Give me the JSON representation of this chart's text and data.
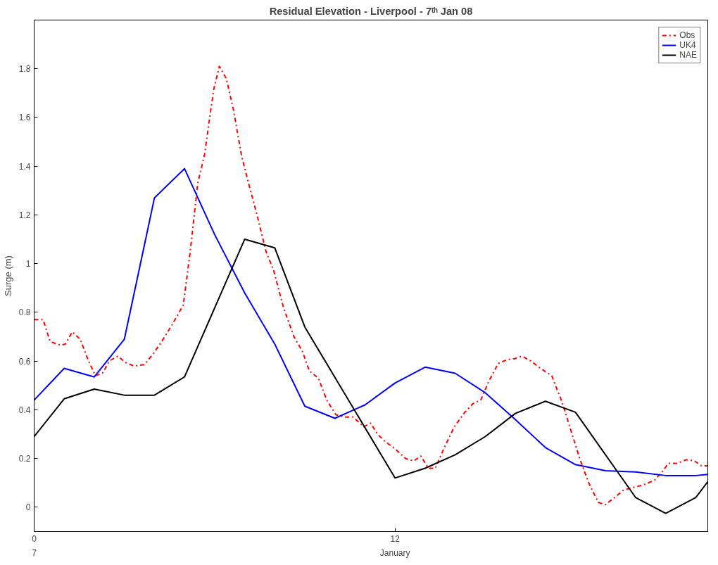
{
  "chart_data": {
    "type": "line",
    "title": "Residual Elevation - Liverpool - 7ᵗʰ Jan 08",
    "ylabel": "Surge (m)",
    "xlim": [
      0,
      22.4
    ],
    "xticks": [
      0,
      12
    ],
    "annotations": [
      "7",
      "January"
    ],
    "ylim": [
      -0.1,
      2.0
    ],
    "yticks": [
      0,
      0.2,
      0.4,
      0.6,
      0.8,
      1,
      1.2,
      1.4,
      1.6,
      1.8
    ],
    "grid": false,
    "legend": "top right",
    "marker": "none",
    "series": [
      {
        "name": "Obs",
        "color": "#ff0000",
        "line_style": "dashed",
        "x": [
          0,
          0.3,
          0.53,
          0.88,
          1.04,
          1.27,
          1.53,
          1.81,
          2.04,
          2.27,
          2.5,
          2.78,
          3.03,
          3.31,
          3.66,
          3.96,
          4.24,
          4.59,
          4.96,
          5.19,
          5.44,
          5.67,
          5.86,
          5.98,
          6.16,
          6.39,
          6.63,
          6.9,
          7.13,
          7.41,
          7.71,
          7.97,
          8.29,
          8.64,
          8.92,
          9.15,
          9.45,
          9.73,
          10.03,
          10.33,
          10.61,
          10.96,
          11.19,
          11.42,
          11.67,
          12.0,
          12.35,
          12.62,
          12.86,
          13.11,
          13.34,
          13.62,
          13.97,
          14.32,
          14.59,
          14.85,
          15.13,
          15.43,
          15.71,
          15.98,
          16.22,
          16.52,
          16.84,
          17.21,
          17.56,
          17.86,
          18.14,
          18.44,
          18.76,
          18.99,
          19.3,
          19.6,
          19.87,
          20.22,
          20.62,
          20.92,
          21.08,
          21.38,
          21.68,
          21.96,
          22.19,
          22.4
        ],
        "values": [
          0.77,
          0.77,
          0.68,
          0.665,
          0.67,
          0.72,
          0.69,
          0.6,
          0.54,
          0.55,
          0.6,
          0.62,
          0.595,
          0.58,
          0.585,
          0.63,
          0.68,
          0.75,
          0.83,
          1.05,
          1.33,
          1.45,
          1.62,
          1.72,
          1.81,
          1.76,
          1.63,
          1.44,
          1.33,
          1.2,
          1.05,
          0.97,
          0.82,
          0.7,
          0.64,
          0.56,
          0.53,
          0.44,
          0.38,
          0.37,
          0.37,
          0.33,
          0.345,
          0.3,
          0.27,
          0.24,
          0.2,
          0.19,
          0.21,
          0.16,
          0.16,
          0.24,
          0.33,
          0.39,
          0.425,
          0.44,
          0.52,
          0.59,
          0.605,
          0.61,
          0.62,
          0.6,
          0.57,
          0.54,
          0.43,
          0.31,
          0.2,
          0.1,
          0.02,
          0.01,
          0.04,
          0.07,
          0.08,
          0.09,
          0.11,
          0.15,
          0.18,
          0.18,
          0.195,
          0.19,
          0.17,
          0.17
        ]
      },
      {
        "name": "UK4",
        "color": "#0000ff",
        "line_style": "solid",
        "x": [
          0,
          1,
          2,
          3,
          4,
          5,
          6,
          7,
          8,
          9,
          10,
          11,
          12,
          13,
          14,
          15,
          16,
          17,
          18,
          19,
          20,
          21,
          22,
          22.4
        ],
        "values": [
          0.44,
          0.57,
          0.535,
          0.69,
          1.27,
          1.39,
          1.12,
          0.88,
          0.67,
          0.415,
          0.365,
          0.42,
          0.51,
          0.575,
          0.55,
          0.47,
          0.36,
          0.245,
          0.175,
          0.15,
          0.145,
          0.13,
          0.13,
          0.135
        ]
      },
      {
        "name": "NAE",
        "color": "#000000",
        "line_style": "solid",
        "x": [
          0,
          1,
          2,
          3,
          4,
          5,
          7,
          8,
          9,
          12,
          13,
          14,
          15,
          16,
          17,
          18,
          20,
          21,
          22,
          22.4
        ],
        "values": [
          0.29,
          0.445,
          0.485,
          0.46,
          0.46,
          0.535,
          1.1,
          1.065,
          0.74,
          0.12,
          0.16,
          0.215,
          0.29,
          0.385,
          0.435,
          0.39,
          0.04,
          -0.025,
          0.04,
          0.105
        ]
      }
    ]
  }
}
